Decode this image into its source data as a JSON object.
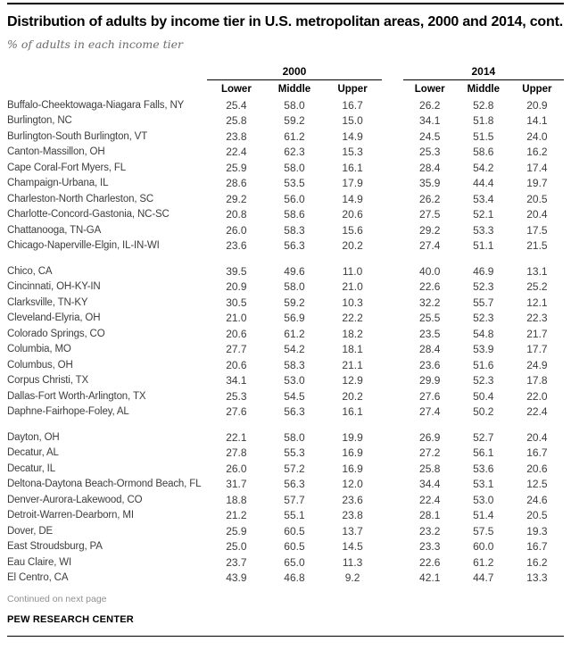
{
  "page": {
    "title": "Distribution of adults by income tier in U.S. metropolitan areas, 2000 and 2014, cont.",
    "subtitle": "% of adults in each income tier",
    "continued_note": "Continued on next page",
    "source": "PEW RESEARCH CENTER"
  },
  "table": {
    "year_groups": [
      "2000",
      "2014"
    ],
    "columns": [
      "Lower",
      "Middle",
      "Upper"
    ],
    "groups": [
      {
        "rows": [
          {
            "name": "Buffalo-Cheektowaga-Niagara Falls, NY",
            "y2000": [
              "25.4",
              "58.0",
              "16.7"
            ],
            "y2014": [
              "26.2",
              "52.8",
              "20.9"
            ]
          },
          {
            "name": "Burlington, NC",
            "y2000": [
              "25.8",
              "59.2",
              "15.0"
            ],
            "y2014": [
              "34.1",
              "51.8",
              "14.1"
            ]
          },
          {
            "name": "Burlington-South Burlington, VT",
            "y2000": [
              "23.8",
              "61.2",
              "14.9"
            ],
            "y2014": [
              "24.5",
              "51.5",
              "24.0"
            ]
          },
          {
            "name": "Canton-Massillon, OH",
            "y2000": [
              "22.4",
              "62.3",
              "15.3"
            ],
            "y2014": [
              "25.3",
              "58.6",
              "16.2"
            ]
          },
          {
            "name": "Cape Coral-Fort Myers, FL",
            "y2000": [
              "25.9",
              "58.0",
              "16.1"
            ],
            "y2014": [
              "28.4",
              "54.2",
              "17.4"
            ]
          },
          {
            "name": "Champaign-Urbana, IL",
            "y2000": [
              "28.6",
              "53.5",
              "17.9"
            ],
            "y2014": [
              "35.9",
              "44.4",
              "19.7"
            ]
          },
          {
            "name": "Charleston-North Charleston, SC",
            "y2000": [
              "29.2",
              "56.0",
              "14.9"
            ],
            "y2014": [
              "26.2",
              "53.4",
              "20.5"
            ]
          },
          {
            "name": "Charlotte-Concord-Gastonia, NC-SC",
            "y2000": [
              "20.8",
              "58.6",
              "20.6"
            ],
            "y2014": [
              "27.5",
              "52.1",
              "20.4"
            ]
          },
          {
            "name": "Chattanooga, TN-GA",
            "y2000": [
              "26.0",
              "58.3",
              "15.6"
            ],
            "y2014": [
              "29.2",
              "53.3",
              "17.5"
            ]
          },
          {
            "name": "Chicago-Naperville-Elgin, IL-IN-WI",
            "y2000": [
              "23.6",
              "56.3",
              "20.2"
            ],
            "y2014": [
              "27.4",
              "51.1",
              "21.5"
            ]
          }
        ]
      },
      {
        "rows": [
          {
            "name": "Chico, CA",
            "y2000": [
              "39.5",
              "49.6",
              "11.0"
            ],
            "y2014": [
              "40.0",
              "46.9",
              "13.1"
            ]
          },
          {
            "name": "Cincinnati, OH-KY-IN",
            "y2000": [
              "20.9",
              "58.0",
              "21.0"
            ],
            "y2014": [
              "22.6",
              "52.3",
              "25.2"
            ]
          },
          {
            "name": "Clarksville, TN-KY",
            "y2000": [
              "30.5",
              "59.2",
              "10.3"
            ],
            "y2014": [
              "32.2",
              "55.7",
              "12.1"
            ]
          },
          {
            "name": "Cleveland-Elyria, OH",
            "y2000": [
              "21.0",
              "56.9",
              "22.2"
            ],
            "y2014": [
              "25.5",
              "52.3",
              "22.3"
            ]
          },
          {
            "name": "Colorado Springs, CO",
            "y2000": [
              "20.6",
              "61.2",
              "18.2"
            ],
            "y2014": [
              "23.5",
              "54.8",
              "21.7"
            ]
          },
          {
            "name": "Columbia, MO",
            "y2000": [
              "27.7",
              "54.2",
              "18.1"
            ],
            "y2014": [
              "28.4",
              "53.9",
              "17.7"
            ]
          },
          {
            "name": "Columbus, OH",
            "y2000": [
              "20.6",
              "58.3",
              "21.1"
            ],
            "y2014": [
              "23.6",
              "51.6",
              "24.9"
            ]
          },
          {
            "name": "Corpus Christi, TX",
            "y2000": [
              "34.1",
              "53.0",
              "12.9"
            ],
            "y2014": [
              "29.9",
              "52.3",
              "17.8"
            ]
          },
          {
            "name": "Dallas-Fort Worth-Arlington, TX",
            "y2000": [
              "25.3",
              "54.5",
              "20.2"
            ],
            "y2014": [
              "27.6",
              "50.4",
              "22.0"
            ]
          },
          {
            "name": "Daphne-Fairhope-Foley, AL",
            "y2000": [
              "27.6",
              "56.3",
              "16.1"
            ],
            "y2014": [
              "27.4",
              "50.2",
              "22.4"
            ]
          }
        ]
      },
      {
        "rows": [
          {
            "name": "Dayton, OH",
            "y2000": [
              "22.1",
              "58.0",
              "19.9"
            ],
            "y2014": [
              "26.9",
              "52.7",
              "20.4"
            ]
          },
          {
            "name": "Decatur, AL",
            "y2000": [
              "27.8",
              "55.3",
              "16.9"
            ],
            "y2014": [
              "27.2",
              "56.1",
              "16.7"
            ]
          },
          {
            "name": "Decatur, IL",
            "y2000": [
              "26.0",
              "57.2",
              "16.9"
            ],
            "y2014": [
              "25.8",
              "53.6",
              "20.6"
            ]
          },
          {
            "name": "Deltona-Daytona Beach-Ormond Beach, FL",
            "y2000": [
              "31.7",
              "56.3",
              "12.0"
            ],
            "y2014": [
              "34.4",
              "53.1",
              "12.5"
            ]
          },
          {
            "name": "Denver-Aurora-Lakewood, CO",
            "y2000": [
              "18.8",
              "57.7",
              "23.6"
            ],
            "y2014": [
              "22.4",
              "53.0",
              "24.6"
            ]
          },
          {
            "name": "Detroit-Warren-Dearborn, MI",
            "y2000": [
              "21.2",
              "55.1",
              "23.8"
            ],
            "y2014": [
              "28.1",
              "51.4",
              "20.5"
            ]
          },
          {
            "name": "Dover, DE",
            "y2000": [
              "25.9",
              "60.5",
              "13.7"
            ],
            "y2014": [
              "23.2",
              "57.5",
              "19.3"
            ]
          },
          {
            "name": "East Stroudsburg, PA",
            "y2000": [
              "25.0",
              "60.5",
              "14.5"
            ],
            "y2014": [
              "23.3",
              "60.0",
              "16.7"
            ]
          },
          {
            "name": "Eau Claire, WI",
            "y2000": [
              "23.7",
              "65.0",
              "11.3"
            ],
            "y2014": [
              "22.6",
              "61.2",
              "16.2"
            ]
          },
          {
            "name": "El Centro, CA",
            "y2000": [
              "43.9",
              "46.8",
              "9.2"
            ],
            "y2014": [
              "42.1",
              "44.7",
              "13.3"
            ]
          }
        ]
      }
    ]
  }
}
